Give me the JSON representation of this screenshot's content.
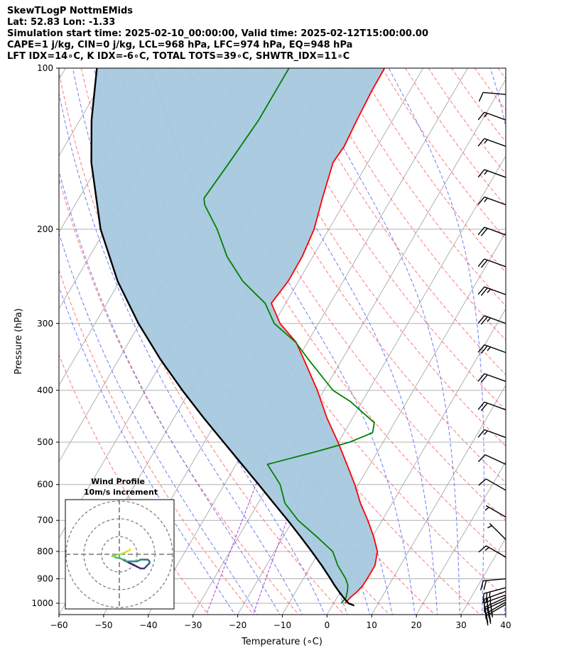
{
  "header": {
    "line1": "SkewTLogP NottmEMids",
    "line2": "Lat: 52.83   Lon: -1.33",
    "line3": "Simulation start time: 2025-02-10_00:00:00, Valid time: 2025-02-12T15:00:00.00",
    "line4": "CAPE=1 j/kg, CIN=0 j/kg, LCL=968 hPa, LFC=974 hPa, EQ=948 hPa",
    "line5": "LFT IDX=14∘C, K IDX=-6∘C, TOTAL TOTS=39∘C, SHWTR_IDX=11∘C"
  },
  "colors": {
    "temperature": "#ff0000",
    "dewpoint": "#008000",
    "parcel": "#000000",
    "cape_fill": "#a6c8df",
    "dry_adiabat": "#ff6060",
    "moist_adiabat": "#5566ee",
    "mixing_ratio": "#9933cc",
    "isotherm": "#b0b0b0",
    "isobar": "#b0b0b0"
  },
  "chart_data": {
    "type": "skewt",
    "xlabel": "Temperature (∘C)",
    "ylabel": "Pressure (hPa)",
    "xlim": [
      -60,
      40
    ],
    "ylim": [
      1050,
      100
    ],
    "xticks": [
      -60,
      -50,
      -40,
      -30,
      -20,
      -10,
      0,
      10,
      20,
      30,
      40
    ],
    "yticks": [
      1000,
      900,
      800,
      700,
      600,
      500,
      400,
      300,
      200,
      100
    ],
    "skew_deg_per_decade": 70,
    "grid": true,
    "series": [
      {
        "name": "temperature",
        "pressure": [
          1000,
          975,
          950,
          925,
          900,
          850,
          800,
          750,
          700,
          650,
          600,
          550,
          500,
          450,
          400,
          350,
          325,
          300,
          275,
          250,
          225,
          200,
          175,
          150,
          140,
          125,
          110,
          100
        ],
        "values": [
          2.5,
          3.0,
          3.8,
          4.2,
          4.3,
          4.3,
          3.0,
          0.2,
          -3.2,
          -7.1,
          -10.8,
          -15.2,
          -20.1,
          -25.8,
          -31.5,
          -38.6,
          -42.6,
          -48.6,
          -53.2,
          -52.3,
          -52.4,
          -53.3,
          -55.5,
          -57.8,
          -57.4,
          -58.0,
          -58.5,
          -58.6
        ]
      },
      {
        "name": "dewpoint",
        "pressure": [
          1000,
          975,
          950,
          925,
          900,
          850,
          800,
          750,
          700,
          650,
          600,
          550,
          520,
          500,
          480,
          460,
          420,
          400,
          350,
          325,
          300,
          275,
          250,
          225,
          200,
          180,
          175,
          150,
          125,
          100
        ],
        "values": [
          1.7,
          2.0,
          1.5,
          0.8,
          -0.5,
          -4.0,
          -7.0,
          -12.6,
          -18.8,
          -24.0,
          -27.5,
          -33.0,
          -23.5,
          -17.5,
          -13.6,
          -14.5,
          -22.6,
          -28.0,
          -37.6,
          -42.7,
          -49.9,
          -54.6,
          -62.5,
          -69.2,
          -75.0,
          -81.0,
          -82.0,
          -81.0,
          -80.0,
          -80.0
        ]
      },
      {
        "name": "parcel",
        "pressure": [
          1010,
          1000,
          975,
          950,
          925,
          900,
          850,
          800,
          750,
          700,
          650,
          600,
          550,
          500,
          450,
          400,
          350,
          300,
          250,
          200,
          150,
          125,
          100
        ],
        "values": [
          4.9,
          3.3,
          1.4,
          -0.4,
          -2.2,
          -3.9,
          -7.6,
          -11.7,
          -16.2,
          -21.1,
          -26.5,
          -32.3,
          -38.7,
          -45.7,
          -53.4,
          -61.7,
          -70.7,
          -80.3,
          -90.5,
          -101.1,
          -111.9,
          -117.4,
          -123.0
        ]
      }
    ],
    "wind_barbs": [
      {
        "pressure": 1005,
        "speed_kt": 25,
        "dir_deg": 240
      },
      {
        "pressure": 995,
        "speed_kt": 25,
        "dir_deg": 240
      },
      {
        "pressure": 985,
        "speed_kt": 25,
        "dir_deg": 245
      },
      {
        "pressure": 975,
        "speed_kt": 25,
        "dir_deg": 245
      },
      {
        "pressure": 965,
        "speed_kt": 25,
        "dir_deg": 250
      },
      {
        "pressure": 950,
        "speed_kt": 25,
        "dir_deg": 250
      },
      {
        "pressure": 935,
        "speed_kt": 25,
        "dir_deg": 255
      },
      {
        "pressure": 900,
        "speed_kt": 20,
        "dir_deg": 265
      },
      {
        "pressure": 820,
        "speed_kt": 15,
        "dir_deg": 300
      },
      {
        "pressure": 760,
        "speed_kt": 5,
        "dir_deg": 315
      },
      {
        "pressure": 690,
        "speed_kt": 5,
        "dir_deg": 300
      },
      {
        "pressure": 615,
        "speed_kt": 10,
        "dir_deg": 300
      },
      {
        "pressure": 550,
        "speed_kt": 10,
        "dir_deg": 295
      },
      {
        "pressure": 490,
        "speed_kt": 15,
        "dir_deg": 290
      },
      {
        "pressure": 435,
        "speed_kt": 20,
        "dir_deg": 290
      },
      {
        "pressure": 385,
        "speed_kt": 20,
        "dir_deg": 290
      },
      {
        "pressure": 340,
        "speed_kt": 25,
        "dir_deg": 290
      },
      {
        "pressure": 300,
        "speed_kt": 25,
        "dir_deg": 290
      },
      {
        "pressure": 265,
        "speed_kt": 25,
        "dir_deg": 290
      },
      {
        "pressure": 235,
        "speed_kt": 20,
        "dir_deg": 290
      },
      {
        "pressure": 205,
        "speed_kt": 20,
        "dir_deg": 290
      },
      {
        "pressure": 180,
        "speed_kt": 15,
        "dir_deg": 290
      },
      {
        "pressure": 160,
        "speed_kt": 15,
        "dir_deg": 290
      },
      {
        "pressure": 140,
        "speed_kt": 15,
        "dir_deg": 290
      },
      {
        "pressure": 125,
        "speed_kt": 15,
        "dir_deg": 290
      },
      {
        "pressure": 112,
        "speed_kt": 10,
        "dir_deg": 275
      }
    ],
    "hodograph": {
      "title": "Wind Profile",
      "subtitle": "10m/s increment",
      "ring_speeds": [
        10,
        20,
        30
      ],
      "u": [
        2,
        4,
        6,
        8,
        10,
        12,
        14,
        15,
        16,
        17,
        17,
        16,
        14,
        12,
        10,
        8,
        6,
        4,
        3,
        2,
        0,
        -2,
        -3,
        -4,
        -3,
        -1,
        1,
        3,
        5,
        6,
        6
      ],
      "v": [
        -3,
        -4,
        -5,
        -6,
        -7,
        -8,
        -8,
        -7,
        -6,
        -5,
        -4,
        -3,
        -3,
        -3,
        -4,
        -4,
        -4,
        -4,
        -3,
        -3,
        -2,
        -2,
        -1,
        -1,
        -1,
        0,
        0,
        1,
        2,
        2,
        3
      ]
    }
  }
}
